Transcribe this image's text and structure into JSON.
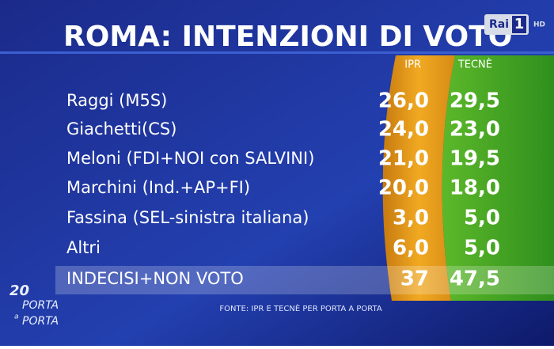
{
  "channel_logo": {
    "brand": "Rai",
    "number": "1",
    "badge": "HD"
  },
  "show_logo": {
    "number": "20",
    "line1": "PORTA",
    "joiner": "a",
    "line2": "PORTA"
  },
  "header": {
    "title": "ROMA: INTENZIONI DI VOTO"
  },
  "table": {
    "columns": [
      "IPR",
      "TECNÈ"
    ],
    "rows": [
      [
        "Raggi (M5S)",
        "26,0",
        "29,5"
      ],
      [
        "Giachetti(CS)",
        "24,0",
        "23,0"
      ],
      [
        "Meloni  (FDI+NOI con SALVINI)",
        "21,0",
        "19,5"
      ],
      [
        "Marchini (Ind.+AP+FI)",
        "20,0",
        "18,0"
      ],
      [
        "Fassina (SEL-sinistra italiana)",
        "3,0",
        "5,0"
      ],
      [
        "Altri",
        "6,0",
        "5,0"
      ],
      [
        "INDECISI+NON VOTO",
        "37",
        "47,5"
      ]
    ]
  },
  "footer": {
    "source": "FONTE: IPR E TECNÈ PER PORTA A PORTA"
  }
}
